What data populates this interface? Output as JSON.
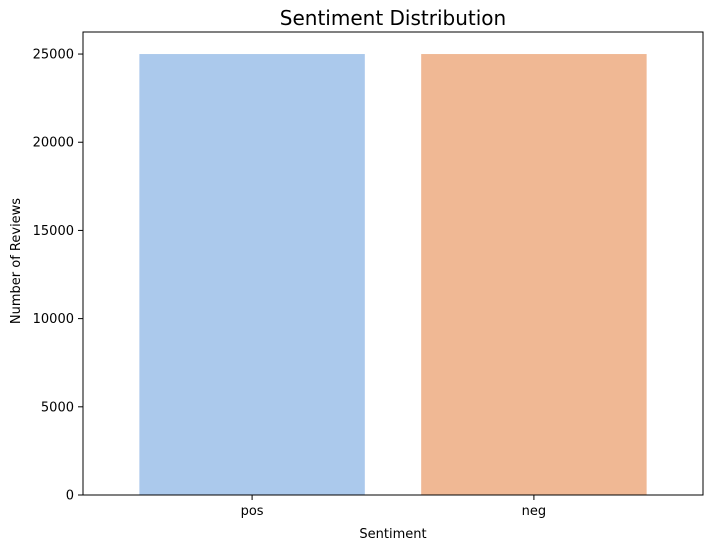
{
  "chart_data": {
    "type": "bar",
    "title": "Sentiment Distribution",
    "xlabel": "Sentiment",
    "ylabel": "Number of Reviews",
    "categories": [
      "pos",
      "neg"
    ],
    "values": [
      25000,
      25000
    ],
    "colors": [
      "#abc9ec",
      "#f0b894"
    ],
    "ylim": [
      0,
      26250
    ],
    "yticks": [
      0,
      5000,
      10000,
      15000,
      20000,
      25000
    ],
    "grid": false,
    "legend": "none"
  }
}
